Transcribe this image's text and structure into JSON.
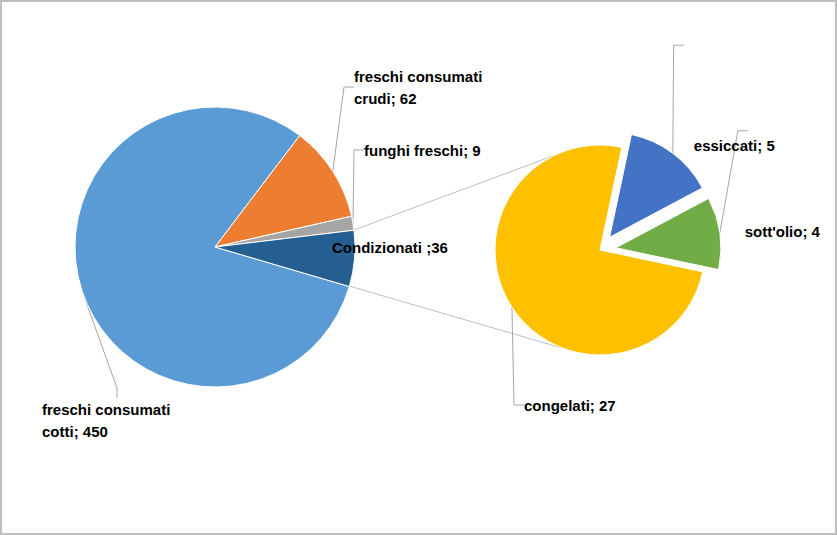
{
  "chart_data": [
    {
      "type": "pie",
      "categories": [
        "freschi consumati cotti",
        "freschi consumati crudi",
        "funghi freschi",
        "Condizionati"
      ],
      "values": [
        450,
        62,
        9,
        36
      ],
      "value_labels": [
        "freschi consumati cotti; 450",
        "freschi consumati crudi; 62",
        "funghi freschi; 9",
        "Condizionati ;36"
      ],
      "colors": [
        "#5b9bd5",
        "#ed7d31",
        "#a5a5a5",
        "#255e91"
      ],
      "data_labels": true
    },
    {
      "type": "pie",
      "categories": [
        "congelati",
        "essiccati",
        "sott'olio"
      ],
      "values": [
        27,
        5,
        4
      ],
      "value_labels": [
        "congelati; 27",
        "essiccati; 5",
        "sott'olio; 4"
      ],
      "colors": [
        "#ffc000",
        "#4472c4",
        "#70ad47"
      ],
      "data_labels": true
    }
  ]
}
